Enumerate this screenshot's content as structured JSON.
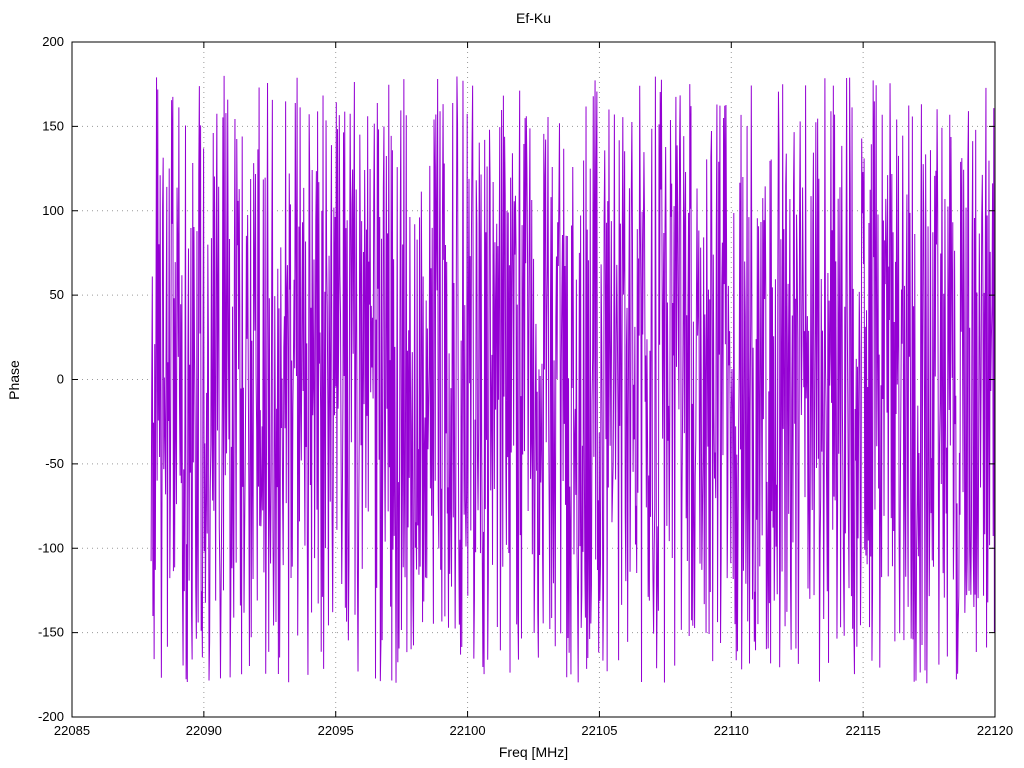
{
  "chart_data": {
    "type": "line",
    "title": "Ef-Ku",
    "xlabel": "Freq [MHz]",
    "ylabel": "Phase",
    "xlim": [
      22085,
      22120
    ],
    "ylim": [
      -200,
      200
    ],
    "x_ticks": [
      22085,
      22090,
      22095,
      22100,
      22105,
      22110,
      22115,
      22120
    ],
    "x_tick_labels": [
      "22085",
      "22090",
      "22095",
      "22100",
      "22105",
      "22110",
      "22115",
      "22120"
    ],
    "y_ticks": [
      -200,
      -150,
      -100,
      -50,
      0,
      50,
      100,
      150,
      200
    ],
    "y_tick_labels": [
      "-200",
      "-150",
      "-100",
      "-50",
      "0",
      "50",
      "100",
      "150",
      "200"
    ],
    "grid": true,
    "grid_style": "dotted",
    "legend": "none",
    "background": "#ffffff",
    "border_color": "#000000",
    "grid_color": "#9a9a9a",
    "series": [
      {
        "name": "Ef-Ku phase",
        "color": "#9400d3",
        "description": "Rapidly wrapping phase-vs-frequency trace; dense noise-like line filling approximately -180 to +180 degrees, beginning near 22088 MHz and continuing to 22120 MHz",
        "x_start": 22088.0,
        "x_end": 22120.0,
        "y_wrap_min": -180,
        "y_wrap_max": 180,
        "n_points": 1400,
        "generator": {
          "kind": "accumulated-phase-wrap",
          "seed": 1337,
          "step_min_deg": 15,
          "step_max_deg": 335
        }
      }
    ]
  }
}
